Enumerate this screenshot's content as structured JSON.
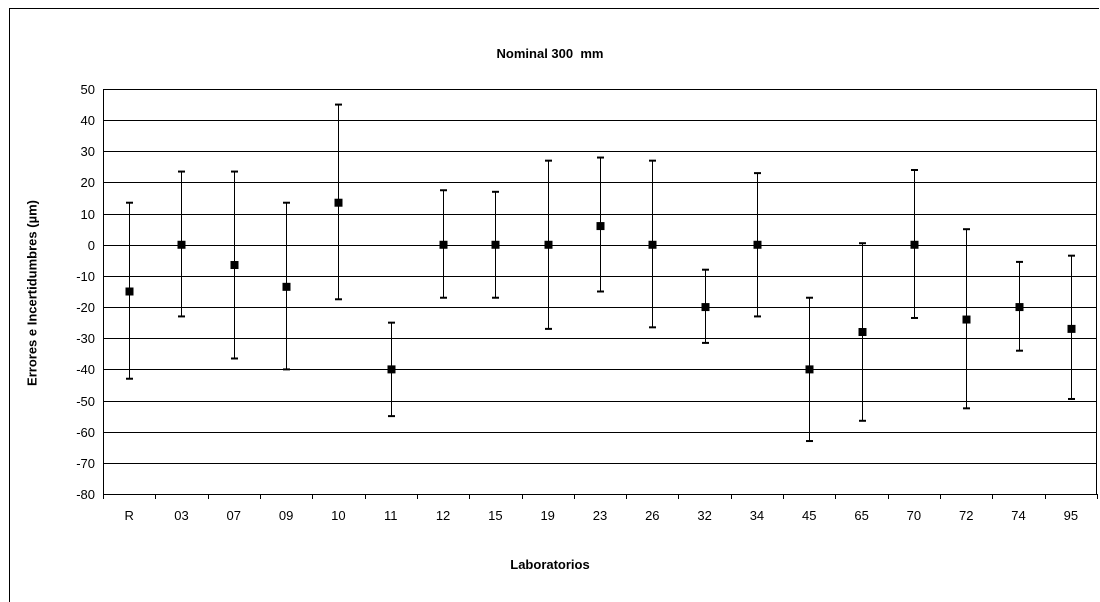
{
  "chart_data": {
    "type": "scatter",
    "title": "Nominal 300  mm",
    "xlabel": "Laboratorios",
    "ylabel": "Errores e Incertidumbres  (µm)",
    "ylim": [
      -80,
      50
    ],
    "yticks": [
      50,
      40,
      30,
      20,
      10,
      0,
      -10,
      -20,
      -30,
      -40,
      -50,
      -60,
      -70,
      -80
    ],
    "grid": true,
    "legend": "none",
    "categories": [
      "R",
      "03",
      "07",
      "09",
      "10",
      "11",
      "12",
      "15",
      "19",
      "23",
      "26",
      "32",
      "34",
      "45",
      "65",
      "70",
      "72",
      "74",
      "95"
    ],
    "series": [
      {
        "values": [
          -15,
          0,
          -6.5,
          -13.5,
          13.5,
          -40,
          0,
          0,
          0,
          6,
          0,
          -20,
          0,
          -40,
          -28,
          0,
          -24,
          -20,
          -27
        ],
        "error_high": [
          13.5,
          23.5,
          23.5,
          13.5,
          45,
          -25,
          17.5,
          17,
          27,
          28,
          27,
          -8,
          23,
          -17,
          0.5,
          24,
          5,
          -5.5,
          -3.5
        ],
        "error_low": [
          -43,
          -23,
          -36.5,
          -40,
          -17.5,
          -55,
          -17,
          -17,
          -27,
          -15,
          -26.5,
          -31.5,
          -23,
          -63,
          -56.5,
          -23.5,
          -52.5,
          -34,
          -49.5
        ]
      }
    ],
    "colors": {
      "marker": "#000000",
      "grid": "#000000",
      "line": "#000000"
    }
  }
}
